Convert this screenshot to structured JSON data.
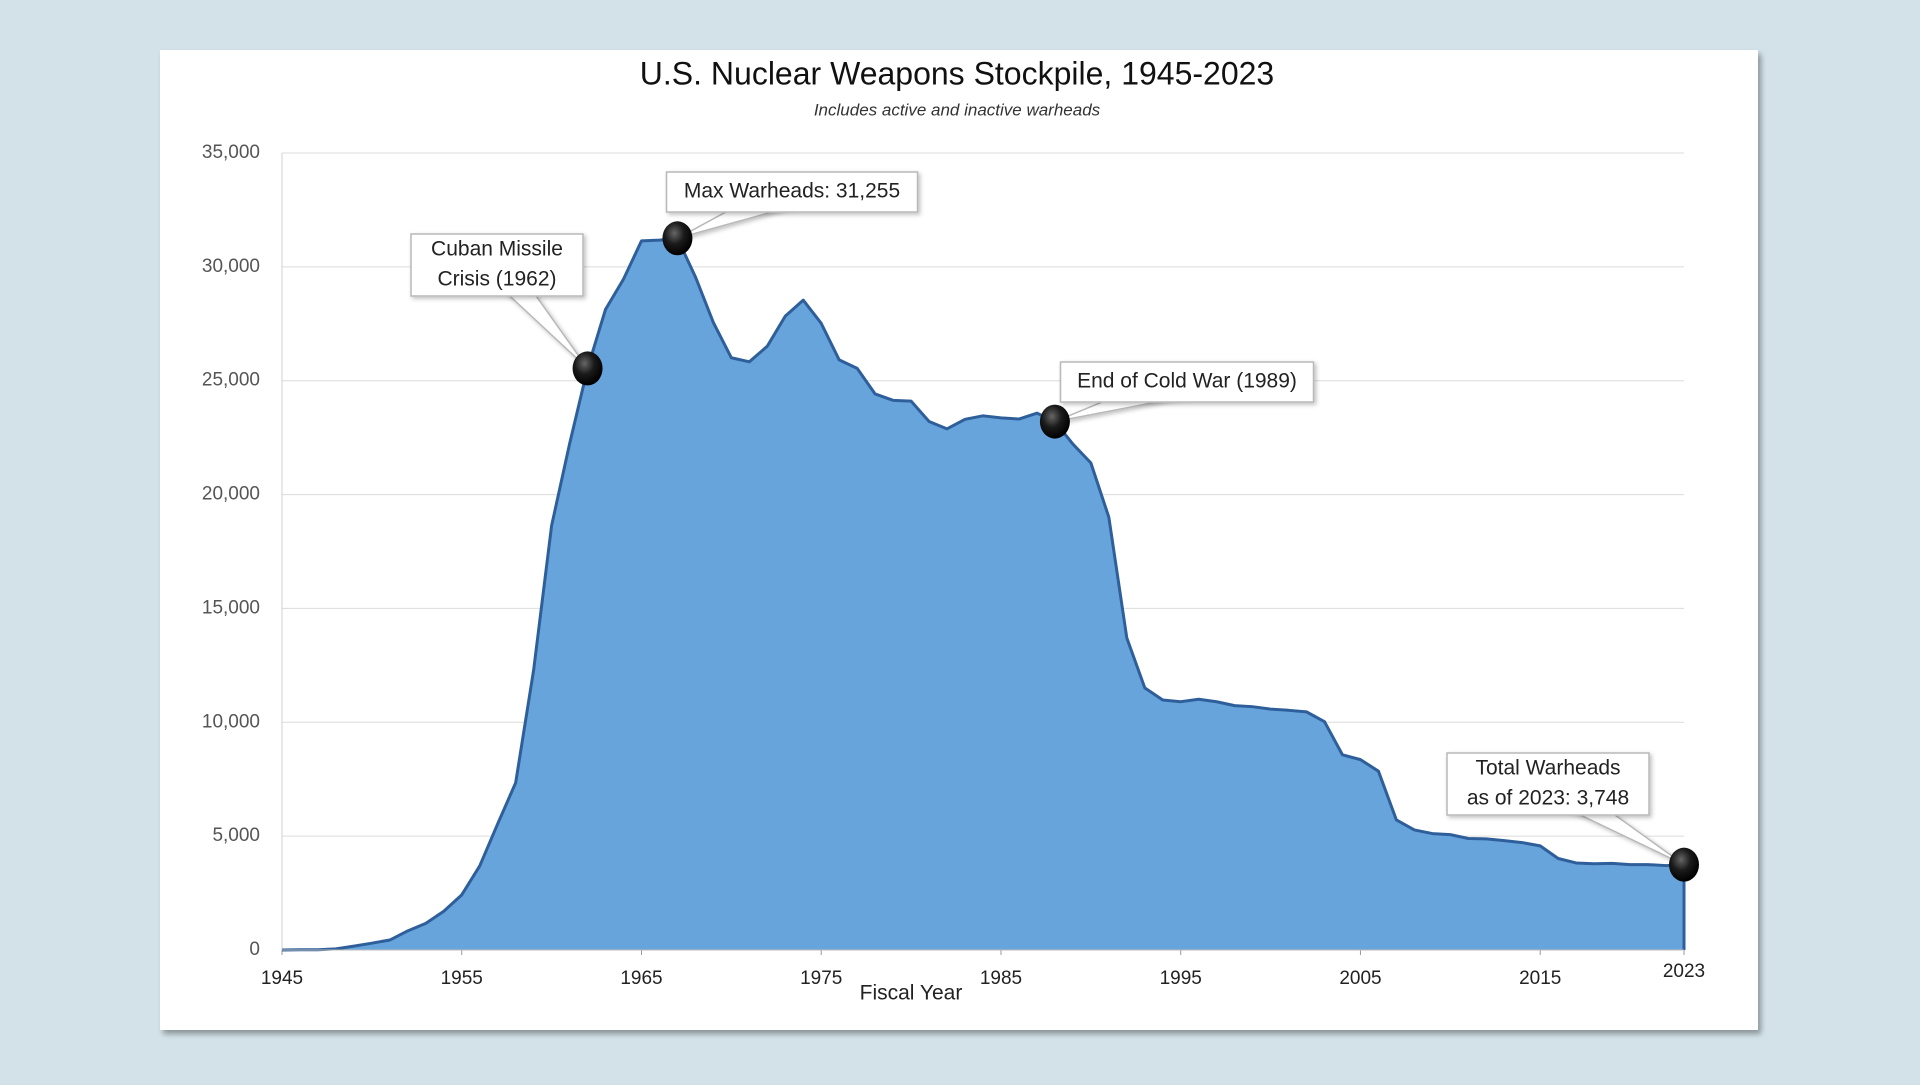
{
  "chart_data": {
    "type": "area",
    "title": "U.S. Nuclear Weapons Stockpile, 1945-2023",
    "subtitle": "Includes active and inactive warheads",
    "x_label": "Fiscal Year",
    "color": "#68a4dc",
    "line_color": "#2e5f9a",
    "grid": true,
    "x": [
      1945,
      1946,
      1947,
      1948,
      1949,
      1950,
      1951,
      1952,
      1953,
      1954,
      1955,
      1956,
      1957,
      1958,
      1959,
      1960,
      1961,
      1962,
      1963,
      1964,
      1965,
      1966,
      1967,
      1968,
      1969,
      1970,
      1971,
      1972,
      1973,
      1974,
      1975,
      1976,
      1977,
      1978,
      1979,
      1980,
      1981,
      1982,
      1983,
      1984,
      1985,
      1986,
      1987,
      1988,
      1989,
      1990,
      1991,
      1992,
      1993,
      1994,
      1995,
      1996,
      1997,
      1998,
      1999,
      2000,
      2001,
      2002,
      2003,
      2004,
      2005,
      2006,
      2007,
      2008,
      2009,
      2010,
      2011,
      2012,
      2013,
      2014,
      2015,
      2016,
      2017,
      2018,
      2019,
      2020,
      2021,
      2022,
      2023
    ],
    "values": [
      2,
      9,
      13,
      50,
      170,
      299,
      438,
      841,
      1169,
      1703,
      2422,
      3692,
      5543,
      7345,
      12298,
      18638,
      22229,
      25540,
      28133,
      29463,
      31139,
      31175,
      31255,
      29561,
      27552,
      26008,
      25830,
      26516,
      27835,
      28537,
      27519,
      25914,
      25542,
      24418,
      24138,
      24104,
      23208,
      22886,
      23305,
      23459,
      23368,
      23317,
      23575,
      23205,
      22217,
      21392,
      19008,
      13708,
      11511,
      10979,
      10904,
      11011,
      10903,
      10732,
      10685,
      10577,
      10526,
      10457,
      10027,
      8570,
      8360,
      7853,
      5709,
      5273,
      5113,
      5066,
      4897,
      4881,
      4804,
      4717,
      4571,
      4018,
      3822,
      3785,
      3805,
      3750,
      3750,
      3708,
      3748
    ],
    "xlim": [
      1945,
      2023
    ],
    "xticks": [
      1945,
      1955,
      1965,
      1975,
      1985,
      1995,
      2005,
      2015,
      2023
    ],
    "ylim": [
      0,
      35000
    ],
    "yticks": [
      0,
      {
        "value": 5000,
        "label": "5,000"
      },
      {
        "value": 10000,
        "label": "10,000"
      },
      {
        "value": 15000,
        "label": "15,000"
      },
      {
        "value": 20000,
        "label": "20,000"
      },
      {
        "value": 25000,
        "label": "25,000"
      },
      {
        "value": 30000,
        "label": "30,000"
      },
      {
        "value": 35000,
        "label": "35,000"
      }
    ],
    "annotations": [
      {
        "x": 1962,
        "lines": [
          "Cuban Missile",
          "Crisis (1962)"
        ]
      },
      {
        "x": 1967,
        "lines": [
          "Max Warheads:  31,255"
        ]
      },
      {
        "x": 1988,
        "lines": [
          "End of Cold War (1989)"
        ]
      },
      {
        "x": 2023,
        "lines": [
          "Total Warheads",
          "as of 2023: 3,748"
        ]
      }
    ]
  }
}
